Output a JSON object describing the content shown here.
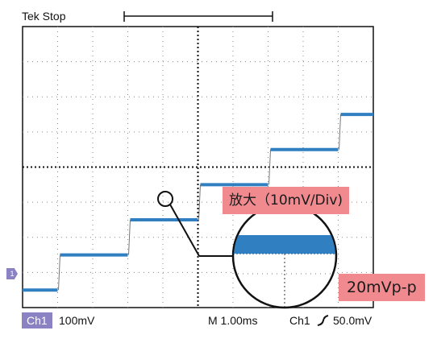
{
  "header": {
    "status": "Tek Stop"
  },
  "callouts": {
    "zoom": "放大（10mV/Div)",
    "ripple": "20mVp-p"
  },
  "channel_marker": "1",
  "status_bar": {
    "channel": "Ch1",
    "vertical_scale": "100mV",
    "timebase": "M 1.00ms",
    "trigger_source": "Ch1",
    "trigger_level": "50.0mV"
  },
  "colors": {
    "trace": "#2f7fc1",
    "callout": "#f08a8f",
    "channel": "#8a82c2"
  },
  "trace_steps_div": [
    {
      "t": [
        0,
        1
      ],
      "level": 0
    },
    {
      "t": [
        1,
        3
      ],
      "level": 1
    },
    {
      "t": [
        3,
        5
      ],
      "level": 2
    },
    {
      "t": [
        5,
        7
      ],
      "level": 3
    },
    {
      "t": [
        7,
        9
      ],
      "level": 4
    },
    {
      "t": [
        9,
        10
      ],
      "level": 5
    }
  ]
}
